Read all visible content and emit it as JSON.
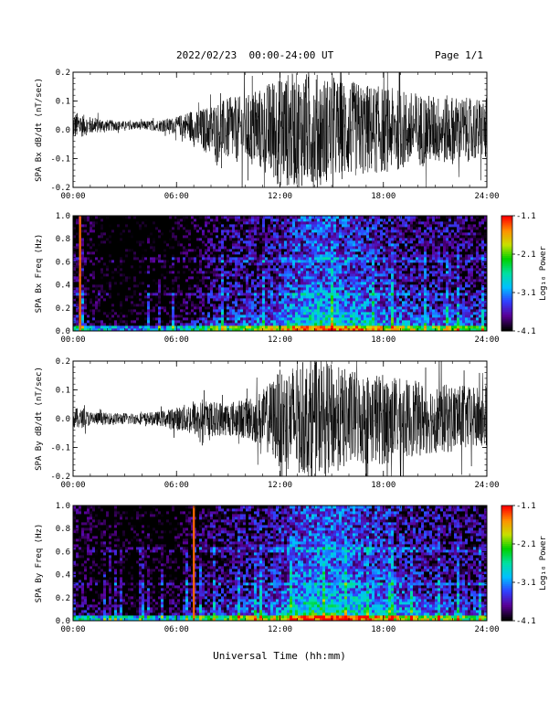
{
  "header": {
    "title": "2022/02/23  00:00-24:00 UT",
    "page": "Page 1/1"
  },
  "xaxis_label": "Universal Time (hh:mm)",
  "colorbar": {
    "label": "Log₁₀ Power",
    "ticks": [
      "-1.1",
      "-2.1",
      "-3.1",
      "-4.1"
    ],
    "range": [
      -4.1,
      -1.1
    ],
    "colors": [
      "#000000",
      "#5a0096",
      "#3040ff",
      "#00c0ff",
      "#00e0a0",
      "#00d000",
      "#c8e000",
      "#ff9000",
      "#ff0000"
    ]
  },
  "chart_data": [
    {
      "type": "line",
      "ylabel": "SPA Bx dB/dt (nT/sec)",
      "xlim": [
        "00:00",
        "24:00"
      ],
      "ylim": [
        -0.2,
        0.2
      ],
      "x_ticks": [
        "00:00",
        "06:00",
        "12:00",
        "18:00",
        "24:00"
      ],
      "y_ticks": [
        "-0.2",
        "-0.1",
        "0.0",
        "0.1",
        "0.2"
      ],
      "series": [
        {
          "x_hours": [
            0,
            1,
            2,
            3,
            4,
            5,
            6,
            7,
            8,
            9,
            10,
            11,
            12,
            13,
            14,
            15,
            16,
            17,
            18,
            19,
            20,
            21,
            22,
            23,
            24
          ],
          "amplitude": [
            0.05,
            0.03,
            0.02,
            0.015,
            0.015,
            0.02,
            0.03,
            0.06,
            0.09,
            0.11,
            0.12,
            0.15,
            0.2,
            0.2,
            0.2,
            0.18,
            0.17,
            0.16,
            0.15,
            0.14,
            0.13,
            0.12,
            0.12,
            0.11,
            0.11
          ]
        }
      ]
    },
    {
      "type": "heatmap",
      "ylabel": "SPA Bx Freq (Hz)",
      "xlim": [
        "00:00",
        "24:00"
      ],
      "ylim": [
        0.0,
        1.0
      ],
      "x_ticks": [
        "00:00",
        "06:00",
        "12:00",
        "18:00",
        "24:00"
      ],
      "y_ticks": [
        "0.0",
        "0.2",
        "0.4",
        "0.6",
        "0.8",
        "1.0"
      ],
      "activity_by_hour": [
        0.45,
        0.35,
        0.25,
        0.25,
        0.25,
        0.25,
        0.3,
        0.4,
        0.5,
        0.55,
        0.6,
        0.6,
        0.7,
        0.8,
        0.85,
        0.85,
        0.8,
        0.75,
        0.7,
        0.65,
        0.6,
        0.6,
        0.6,
        0.55,
        0.55
      ],
      "spike_hours": [
        0.4
      ]
    },
    {
      "type": "line",
      "ylabel": "SPA By dB/dt (nT/sec)",
      "xlim": [
        "00:00",
        "24:00"
      ],
      "ylim": [
        -0.2,
        0.2
      ],
      "x_ticks": [
        "00:00",
        "06:00",
        "12:00",
        "18:00",
        "24:00"
      ],
      "y_ticks": [
        "-0.2",
        "-0.1",
        "0.0",
        "0.1",
        "0.2"
      ],
      "series": [
        {
          "x_hours": [
            0,
            1,
            2,
            3,
            4,
            5,
            6,
            7,
            8,
            9,
            10,
            11,
            12,
            13,
            14,
            15,
            16,
            17,
            18,
            19,
            20,
            21,
            22,
            23,
            24
          ],
          "amplitude": [
            0.04,
            0.025,
            0.02,
            0.02,
            0.02,
            0.025,
            0.04,
            0.06,
            0.06,
            0.06,
            0.07,
            0.1,
            0.17,
            0.2,
            0.2,
            0.19,
            0.17,
            0.16,
            0.16,
            0.14,
            0.13,
            0.12,
            0.12,
            0.11,
            0.11
          ]
        }
      ]
    },
    {
      "type": "heatmap",
      "ylabel": "SPA By Freq (Hz)",
      "xlim": [
        "00:00",
        "24:00"
      ],
      "ylim": [
        0.0,
        1.0
      ],
      "x_ticks": [
        "00:00",
        "06:00",
        "12:00",
        "18:00",
        "24:00"
      ],
      "y_ticks": [
        "0.0",
        "0.2",
        "0.4",
        "0.6",
        "0.8",
        "1.0"
      ],
      "activity_by_hour": [
        0.45,
        0.35,
        0.3,
        0.3,
        0.3,
        0.3,
        0.35,
        0.45,
        0.5,
        0.55,
        0.6,
        0.6,
        0.7,
        0.85,
        0.9,
        0.9,
        0.85,
        0.8,
        0.75,
        0.7,
        0.65,
        0.6,
        0.6,
        0.55,
        0.55
      ],
      "spike_hours": [
        7.0
      ]
    }
  ]
}
